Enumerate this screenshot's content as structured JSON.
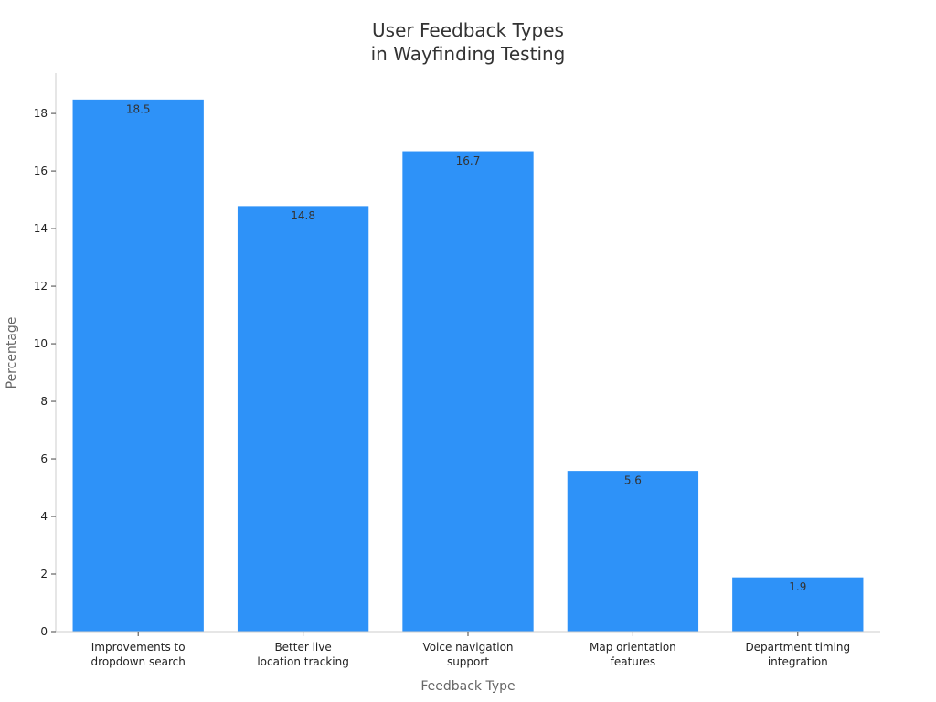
{
  "chart_data": {
    "type": "bar",
    "title_lines": [
      "User Feedback Types",
      "in Wayfinding Testing"
    ],
    "xlabel": "Feedback Type",
    "ylabel": "Percentage",
    "categories": [
      [
        "Improvements to",
        "dropdown search"
      ],
      [
        "Better live",
        "location tracking"
      ],
      [
        "Voice navigation",
        "support"
      ],
      [
        "Map orientation",
        "features"
      ],
      [
        "Department timing",
        "integration"
      ]
    ],
    "values": [
      18.5,
      14.8,
      16.7,
      5.6,
      1.9
    ],
    "data_labels": [
      "18.5",
      "14.8",
      "16.7",
      "5.6",
      "1.9"
    ],
    "yticks": [
      0,
      2,
      4,
      6,
      8,
      10,
      12,
      14,
      16,
      18
    ],
    "ylim": [
      0,
      19.4
    ],
    "grid": false,
    "bar_color": "#2e92f8",
    "bar_edge_color": "#ffffff"
  }
}
